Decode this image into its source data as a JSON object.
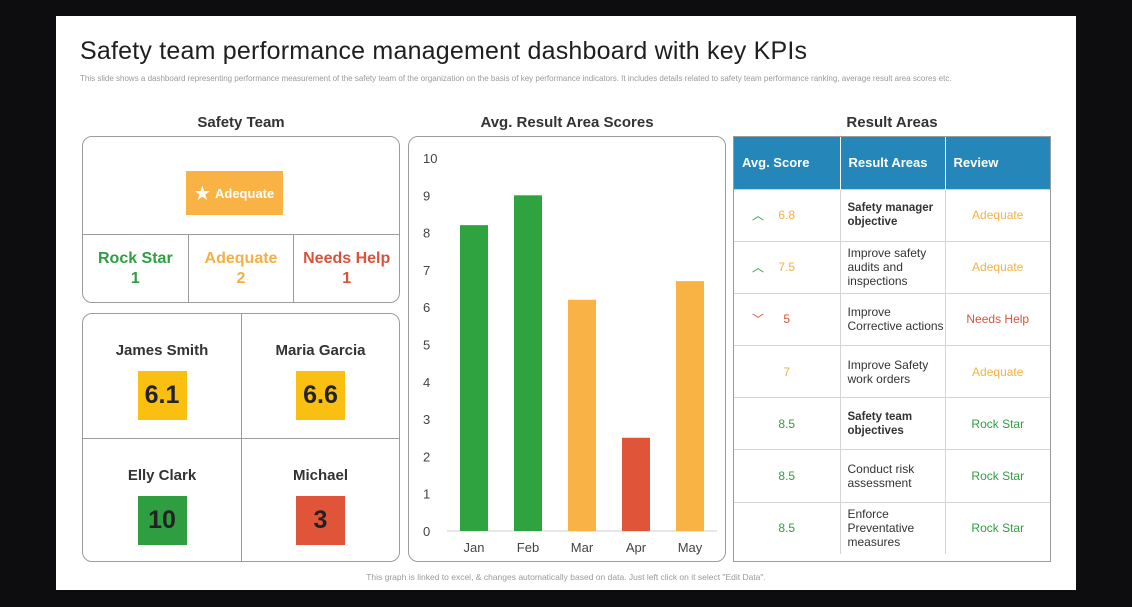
{
  "title": "Safety team performance management dashboard with key KPIs",
  "subtitle": "This slide shows a dashboard representing performance measurement of the safety team of the organization on the basis of key performance indicators. It includes details related to safety team performance ranking, average result area scores etc.",
  "sections": {
    "team": "Safety Team",
    "chart": "Avg. Result Area Scores",
    "areas": "Result Areas"
  },
  "team_summary": {
    "overall": "Adequate",
    "categories": [
      {
        "label": "Rock Star",
        "count": "1",
        "color": "#2f9e41"
      },
      {
        "label": "Adequate",
        "count": "2",
        "color": "#f5b041"
      },
      {
        "label": "Needs Help",
        "count": "1",
        "color": "#d9533b"
      }
    ]
  },
  "members": [
    {
      "name": "James Smith",
      "score": "6.1",
      "color": "#f9c012"
    },
    {
      "name": "Maria Garcia",
      "score": "6.6",
      "color": "#f9c012"
    },
    {
      "name": "Elly Clark",
      "score": "10",
      "color": "#2f9e41"
    },
    {
      "name": "Michael",
      "score": "3",
      "color": "#e0553a"
    }
  ],
  "chart_data": {
    "type": "bar",
    "categories": [
      "Jan",
      "Feb",
      "Mar",
      "Apr",
      "May"
    ],
    "values": [
      8.2,
      9.0,
      6.2,
      2.5,
      6.7
    ],
    "bar_colors": [
      "#2fa33f",
      "#2fa33f",
      "#f9b345",
      "#e0553a",
      "#f9b345"
    ],
    "ylim": [
      0,
      10
    ],
    "yticks": [
      "0",
      "1",
      "2",
      "3",
      "4",
      "5",
      "6",
      "7",
      "8",
      "9",
      "10"
    ],
    "grid": false,
    "title": "",
    "xlabel": "",
    "ylabel": ""
  },
  "result_areas": {
    "headers": [
      "Avg.  Score",
      "Result  Areas",
      "Review"
    ],
    "rows": [
      {
        "trend": "up",
        "score": "6.8",
        "area": "Safety manager objective",
        "bold": true,
        "review": "Adequate",
        "score_color": "#f5b041",
        "review_color": "#f5b041"
      },
      {
        "trend": "up",
        "score": "7.5",
        "area": "Improve safety audits and inspections",
        "bold": false,
        "review": "Adequate",
        "score_color": "#f5b041",
        "review_color": "#f5b041"
      },
      {
        "trend": "down",
        "score": "5",
        "area": "Improve Corrective actions",
        "bold": false,
        "review": "Needs Help",
        "score_color": "#d9533b",
        "review_color": "#d9533b"
      },
      {
        "trend": "",
        "score": "7",
        "area": "Improve Safety work orders",
        "bold": false,
        "review": "Adequate",
        "score_color": "#f5b041",
        "review_color": "#f5b041"
      },
      {
        "trend": "",
        "score": "8.5",
        "area": "Safety team objectives",
        "bold": true,
        "review": "Rock Star",
        "score_color": "#2f9e41",
        "review_color": "#2f9e41"
      },
      {
        "trend": "",
        "score": "8.5",
        "area": "Conduct risk assessment",
        "bold": false,
        "review": "Rock Star",
        "score_color": "#2f9e41",
        "review_color": "#2f9e41"
      },
      {
        "trend": "",
        "score": "8.5",
        "area": "Enforce Preventative measures",
        "bold": false,
        "review": "Rock Star",
        "score_color": "#2f9e41",
        "review_color": "#2f9e41"
      }
    ]
  },
  "footer": "This graph is linked to excel, & changes automatically based on data. Just left click on it select \"Edit Data\"."
}
